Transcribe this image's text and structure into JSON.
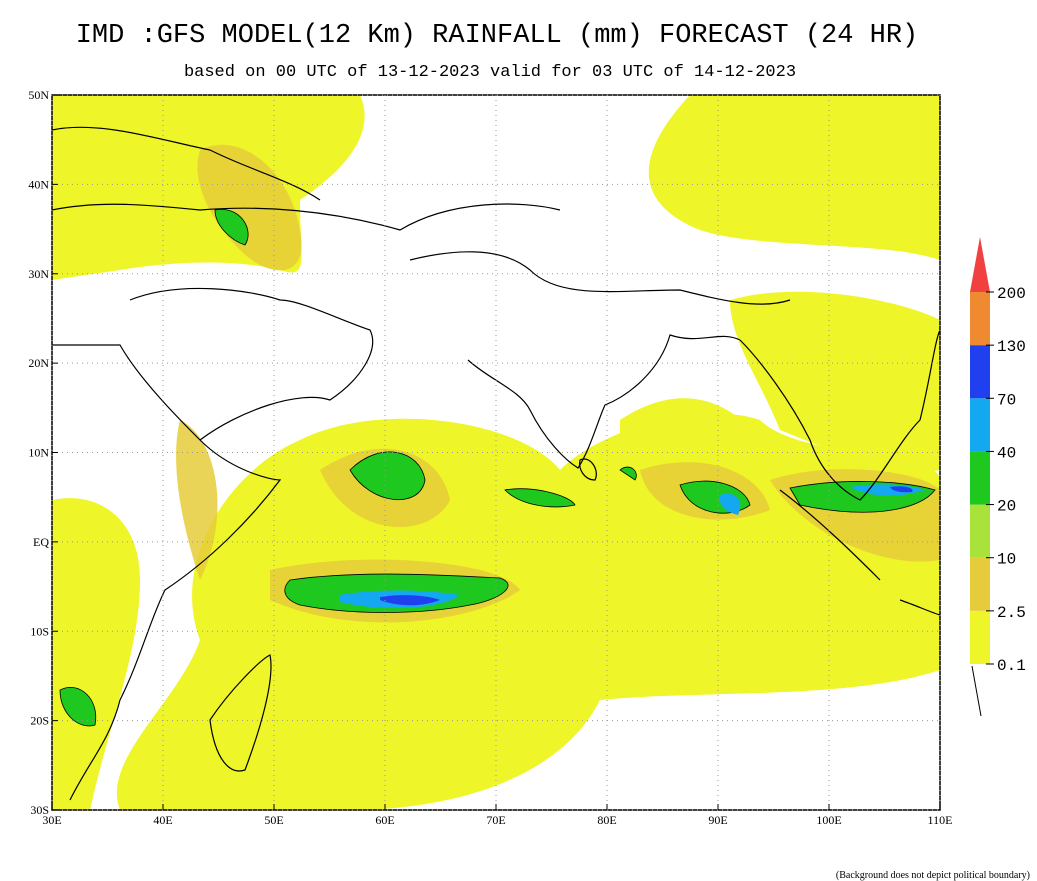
{
  "header": {
    "title": "IMD :GFS MODEL(12 Km) RAINFALL (mm) FORECAST (24 HR)",
    "subtitle": "based on 00 UTC of 13-12-2023 valid for 03 UTC of 14-12-2023"
  },
  "map": {
    "xlim": [
      30,
      110
    ],
    "ylim": [
      -30,
      50
    ],
    "xticks": [
      {
        "value": 30,
        "label": "30E"
      },
      {
        "value": 40,
        "label": "40E"
      },
      {
        "value": 50,
        "label": "50E"
      },
      {
        "value": 60,
        "label": "60E"
      },
      {
        "value": 70,
        "label": "70E"
      },
      {
        "value": 80,
        "label": "80E"
      },
      {
        "value": 90,
        "label": "90E"
      },
      {
        "value": 100,
        "label": "100E"
      },
      {
        "value": 110,
        "label": "110E"
      }
    ],
    "yticks": [
      {
        "value": -30,
        "label": "30S"
      },
      {
        "value": -20,
        "label": "20S"
      },
      {
        "value": -10,
        "label": "10S"
      },
      {
        "value": 0,
        "label": "EQ"
      },
      {
        "value": 10,
        "label": "10N"
      },
      {
        "value": 20,
        "label": "20N"
      },
      {
        "value": 30,
        "label": "30N"
      },
      {
        "value": 40,
        "label": "40N"
      },
      {
        "value": 50,
        "label": "50N"
      }
    ],
    "grid": true
  },
  "legend": {
    "levels": [
      0.1,
      2.5,
      10,
      20,
      40,
      70,
      130,
      200
    ],
    "colors": [
      "#eef528",
      "#e6cc3a",
      "#a8e23a",
      "#1ec81e",
      "#14a8f0",
      "#2040f0",
      "#f08a30",
      "#f04040"
    ]
  },
  "footnote": "(Background does not depict political boundary)"
}
